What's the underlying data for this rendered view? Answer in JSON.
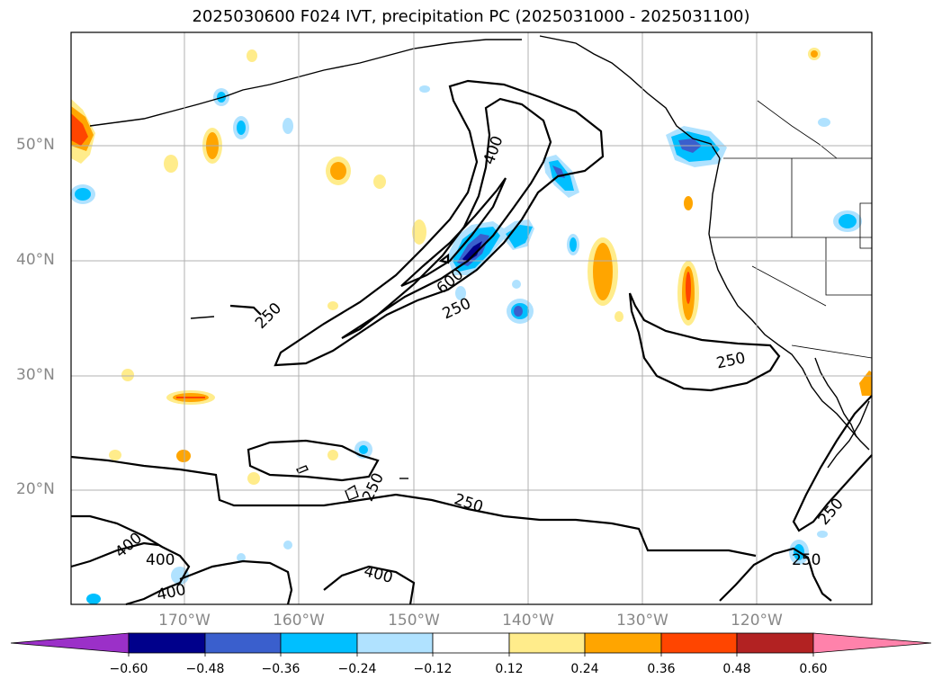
{
  "title": "2025030600 F024 IVT, precipitation PC (2025031000 - 2025031100)",
  "lat_labels": [
    "50°N",
    "40°N",
    "30°N",
    "20°N"
  ],
  "lon_labels": [
    "170°W",
    "160°W",
    "150°W",
    "140°W",
    "130°W",
    "120°W"
  ],
  "contour_labels": [
    "400",
    "600",
    "250",
    "250",
    "250",
    "250",
    "250",
    "400",
    "400",
    "400",
    "400",
    "250",
    "250"
  ],
  "colorbar": {
    "ticks": [
      "−0.60",
      "−0.48",
      "−0.36",
      "−0.24",
      "−0.12",
      "0.12",
      "0.24",
      "0.36",
      "0.48",
      "0.60"
    ],
    "colors": [
      "#9b30c8",
      "#00008b",
      "#3a5fcd",
      "#00bfff",
      "#b0e2ff",
      "#ffffff",
      "#ffec8b",
      "#ffa500",
      "#ff4500",
      "#b22222",
      "#ff82ab"
    ]
  }
}
